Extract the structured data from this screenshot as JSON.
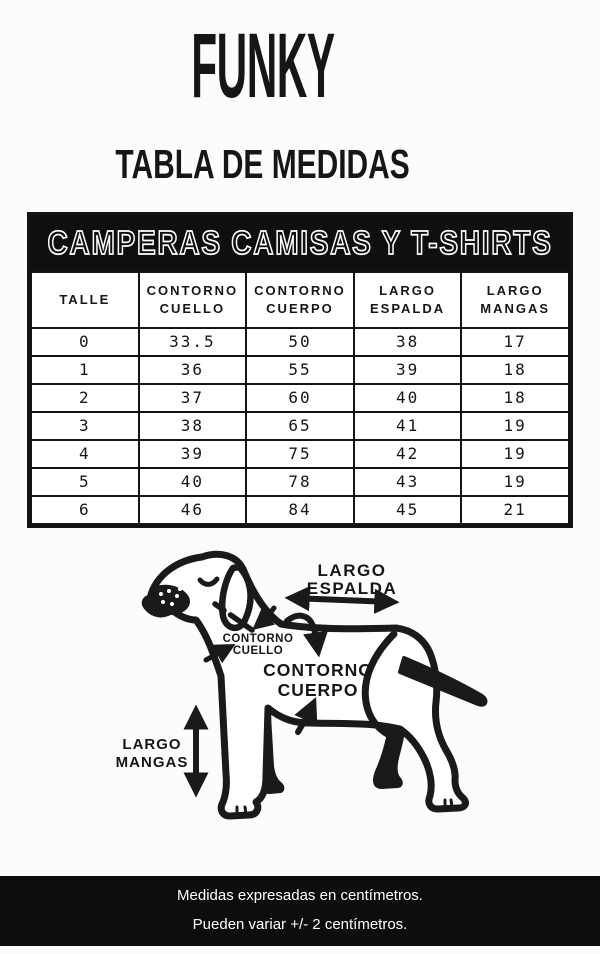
{
  "page": {
    "background_color": "#fcfcfc"
  },
  "header": {
    "brand": "FUNKY",
    "title": "TABLA DE MEDIDAS"
  },
  "size_table": {
    "banner": "CAMPERAS CAMISAS Y T-SHIRTS",
    "banner_bg": "#0f0f0f",
    "columns": [
      "TALLE",
      "CONTORNO CUELLO",
      "CONTORNO CUERPO",
      "LARGO ESPALDA",
      "LARGO MANGAS"
    ],
    "rows": [
      [
        "0",
        "33.5",
        "50",
        "38",
        "17"
      ],
      [
        "1",
        "36",
        "55",
        "39",
        "18"
      ],
      [
        "2",
        "37",
        "60",
        "40",
        "18"
      ],
      [
        "3",
        "38",
        "65",
        "41",
        "19"
      ],
      [
        "4",
        "39",
        "75",
        "42",
        "19"
      ],
      [
        "5",
        "40",
        "78",
        "43",
        "19"
      ],
      [
        "6",
        "46",
        "84",
        "45",
        "21"
      ]
    ],
    "units": "cm"
  },
  "diagram": {
    "labels": {
      "largo_espalda": {
        "line1": "LARGO",
        "line2": "ESPALDA"
      },
      "contorno_cuello": {
        "line1": "CONTORNO",
        "line2": "CUELLO"
      },
      "contorno_cuerpo": {
        "line1": "CONTORNO",
        "line2": "CUERPO"
      },
      "largo_mangas": {
        "line1": "LARGO",
        "line2": "MANGAS"
      }
    }
  },
  "footer": {
    "line1": "Medidas expresadas en centímetros.",
    "line2": "Pueden variar +/- 2 centímetros.",
    "background_color": "#0d0d0d",
    "text_color": "#ffffff"
  },
  "colors": {
    "ink": "#1a1a1a",
    "table_border": "#141414",
    "background": "#fcfcfc"
  }
}
